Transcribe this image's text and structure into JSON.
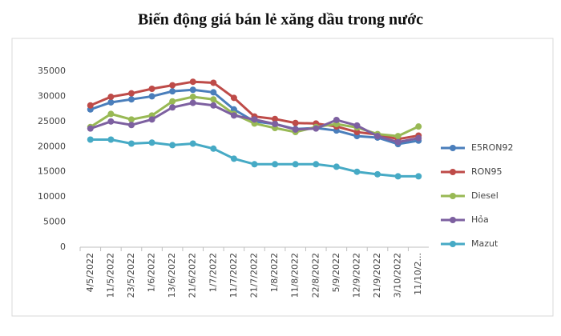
{
  "chart_data": {
    "type": "line",
    "title": "Biến động giá bán lẻ xăng dầu trong nước",
    "categories": [
      "4/5/2022",
      "11/5/2022",
      "23/5/2022",
      "1/6/2022",
      "13/6/2022",
      "21/6/2022",
      "1/7/2022",
      "11/7/2022",
      "21/7/2022",
      "1/8/2022",
      "11/8/2022",
      "22/8/2022",
      "5/9/2022",
      "12/9/2022",
      "21/9/2022",
      "3/10/2022",
      "11/10/2..."
    ],
    "series": [
      {
        "name": "E5RON92",
        "color": "#4a7ebb",
        "values": [
          27400,
          28800,
          29400,
          30000,
          31000,
          31300,
          30800,
          27400,
          25000,
          24500,
          23500,
          23700,
          23200,
          22100,
          21800,
          20500,
          21200
        ]
      },
      {
        "name": "RON95",
        "color": "#be4b48",
        "values": [
          28200,
          29900,
          30600,
          31500,
          32200,
          32900,
          32700,
          29700,
          26000,
          25500,
          24700,
          24600,
          24000,
          22900,
          22400,
          21500,
          22200
        ]
      },
      {
        "name": "Diesel",
        "color": "#98b954",
        "values": [
          23900,
          26500,
          25400,
          26200,
          29000,
          29900,
          29400,
          26500,
          24600,
          23700,
          22900,
          23900,
          24500,
          23800,
          22500,
          22100,
          24000
        ]
      },
      {
        "name": "Hỏa",
        "color": "#7d60a0",
        "values": [
          23600,
          25000,
          24300,
          25400,
          27800,
          28700,
          28200,
          26200,
          25400,
          24500,
          23400,
          23600,
          25300,
          24200,
          22100,
          20900,
          21700
        ]
      },
      {
        "name": "Mazut",
        "color": "#46aac5",
        "values": [
          21400,
          21400,
          20600,
          20800,
          20300,
          20600,
          19600,
          17600,
          16500,
          16500,
          16500,
          16500,
          16000,
          15000,
          14500,
          14100,
          14100
        ]
      }
    ],
    "ylim": [
      0,
      35000
    ],
    "yticks": [
      0,
      5000,
      10000,
      15000,
      20000,
      25000,
      30000,
      35000
    ],
    "grid": false,
    "legend": "right"
  }
}
